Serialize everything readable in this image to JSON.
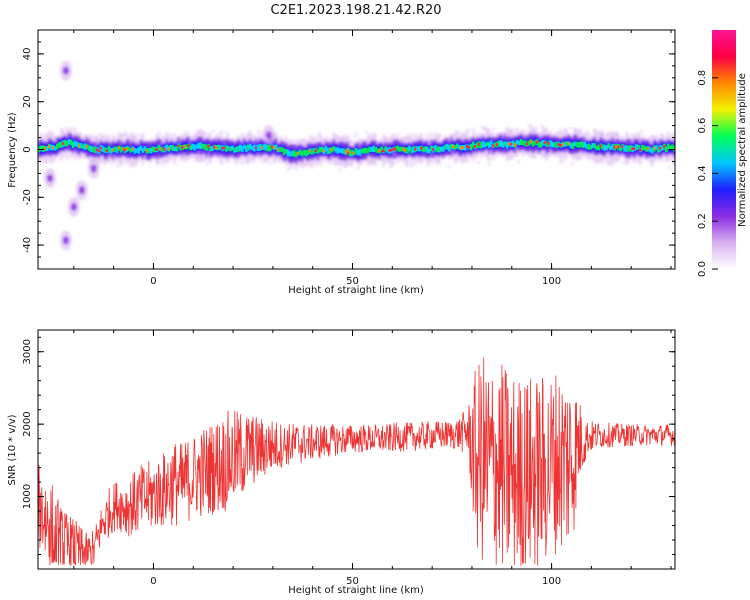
{
  "figure": {
    "title": "C2E1.2023.198.21.42.R20"
  },
  "chart_data": [
    {
      "type": "heatmap",
      "xlabel": "Height of straight line (km)",
      "ylabel": "Frequency (Hz)",
      "xlim": [
        -29,
        131
      ],
      "ylim": [
        -50,
        50
      ],
      "xticks": [
        0,
        50,
        100
      ],
      "yticks": [
        -40,
        -20,
        0,
        20,
        40
      ],
      "colorbar": {
        "label": "Normalized spectral amplitude",
        "range": [
          0,
          1
        ],
        "ticks": [
          "0.0",
          "0.2",
          "0.4",
          "0.6",
          "0.8"
        ],
        "colormap": [
          "#ffffff",
          "#d9b0f0",
          "#8a2be2",
          "#1e1eff",
          "#00c8ff",
          "#00ff55",
          "#f2f200",
          "#ff8800",
          "#ff0044",
          "#ff1493"
        ]
      },
      "ridge": {
        "x": [
          -29,
          -25,
          -22,
          -19,
          -16,
          -12,
          -6,
          0,
          6,
          12,
          18,
          24,
          30,
          34,
          38,
          44,
          50,
          56,
          62,
          66,
          70,
          76,
          82,
          88,
          94,
          100,
          106,
          112,
          118,
          124,
          131
        ],
        "frequency_hz": [
          0,
          1,
          3,
          2,
          0,
          0,
          0,
          0,
          1,
          1,
          0,
          1,
          1,
          -2,
          -1,
          0,
          -1,
          0,
          0,
          0,
          0,
          1,
          2,
          2,
          3,
          2,
          2,
          1,
          1,
          0,
          1
        ]
      },
      "scattered_energy": [
        {
          "x": -22,
          "frequency_hz": 33
        },
        {
          "x": -26,
          "frequency_hz": -12
        },
        {
          "x": -18,
          "frequency_hz": -17
        },
        {
          "x": -20,
          "frequency_hz": -24
        },
        {
          "x": -15,
          "frequency_hz": -8
        },
        {
          "x": 29,
          "frequency_hz": 6
        },
        {
          "x": -22,
          "frequency_hz": -38
        }
      ],
      "colorbar_note": "shown as continuous color scale"
    },
    {
      "type": "line",
      "xlabel": "Height of straight line (km)",
      "ylabel": "SNR (10 * v/v)",
      "xlim": [
        -29,
        131
      ],
      "ylim": [
        0,
        3300
      ],
      "xticks": [
        0,
        50,
        100
      ],
      "yticks": [
        1000,
        2000,
        3000
      ],
      "series": [
        {
          "color": "#ee3333",
          "x": [
            -29,
            -27,
            -25,
            -23,
            -21,
            -19,
            -17,
            -15,
            -13,
            -11,
            -9,
            -7,
            -5,
            -3,
            -1,
            1,
            3,
            5,
            7,
            9,
            11,
            13,
            15,
            17,
            19,
            21,
            23,
            25,
            27,
            29,
            31,
            33,
            35,
            37,
            39,
            41,
            43,
            45,
            47,
            49,
            51,
            53,
            55,
            57,
            59,
            61,
            63,
            65,
            67,
            69,
            71,
            73,
            75,
            77,
            79,
            81,
            83,
            85,
            87,
            89,
            91,
            93,
            95,
            97,
            99,
            101,
            103,
            105,
            107,
            109,
            111,
            113,
            115,
            117,
            119,
            121,
            123,
            125,
            127,
            129,
            131
          ],
          "mean": [
            900,
            700,
            450,
            350,
            300,
            250,
            200,
            250,
            600,
            800,
            900,
            850,
            900,
            950,
            1000,
            1050,
            1100,
            1200,
            1150,
            1250,
            1300,
            1350,
            1400,
            1450,
            1500,
            1550,
            1600,
            1650,
            1650,
            1700,
            1700,
            1720,
            1720,
            1740,
            1740,
            1760,
            1760,
            1780,
            1780,
            1800,
            1800,
            1800,
            1800,
            1800,
            1800,
            1820,
            1820,
            1830,
            1830,
            1840,
            1850,
            1850,
            1860,
            1870,
            1900,
            1500,
            1500,
            1400,
            1400,
            1300,
            1300,
            1300,
            1300,
            1300,
            1400,
            1500,
            1500,
            1500,
            1750,
            1820,
            1840,
            1850,
            1850,
            1850,
            1850,
            1850,
            1850,
            1850,
            1850,
            1850,
            1850
          ],
          "spread": [
            600,
            700,
            700,
            500,
            450,
            400,
            300,
            300,
            300,
            350,
            350,
            400,
            450,
            500,
            500,
            500,
            550,
            600,
            600,
            600,
            600,
            650,
            650,
            700,
            700,
            650,
            600,
            500,
            450,
            400,
            350,
            300,
            300,
            300,
            250,
            250,
            250,
            220,
            220,
            200,
            200,
            200,
            200,
            200,
            200,
            200,
            200,
            200,
            200,
            200,
            200,
            200,
            200,
            250,
            350,
            1300,
            1500,
            1500,
            1500,
            1500,
            1400,
            1400,
            1400,
            1400,
            1300,
            1300,
            1300,
            1300,
            600,
            250,
            200,
            180,
            170,
            160,
            160,
            150,
            150,
            150,
            150,
            150,
            150
          ]
        }
      ]
    }
  ]
}
